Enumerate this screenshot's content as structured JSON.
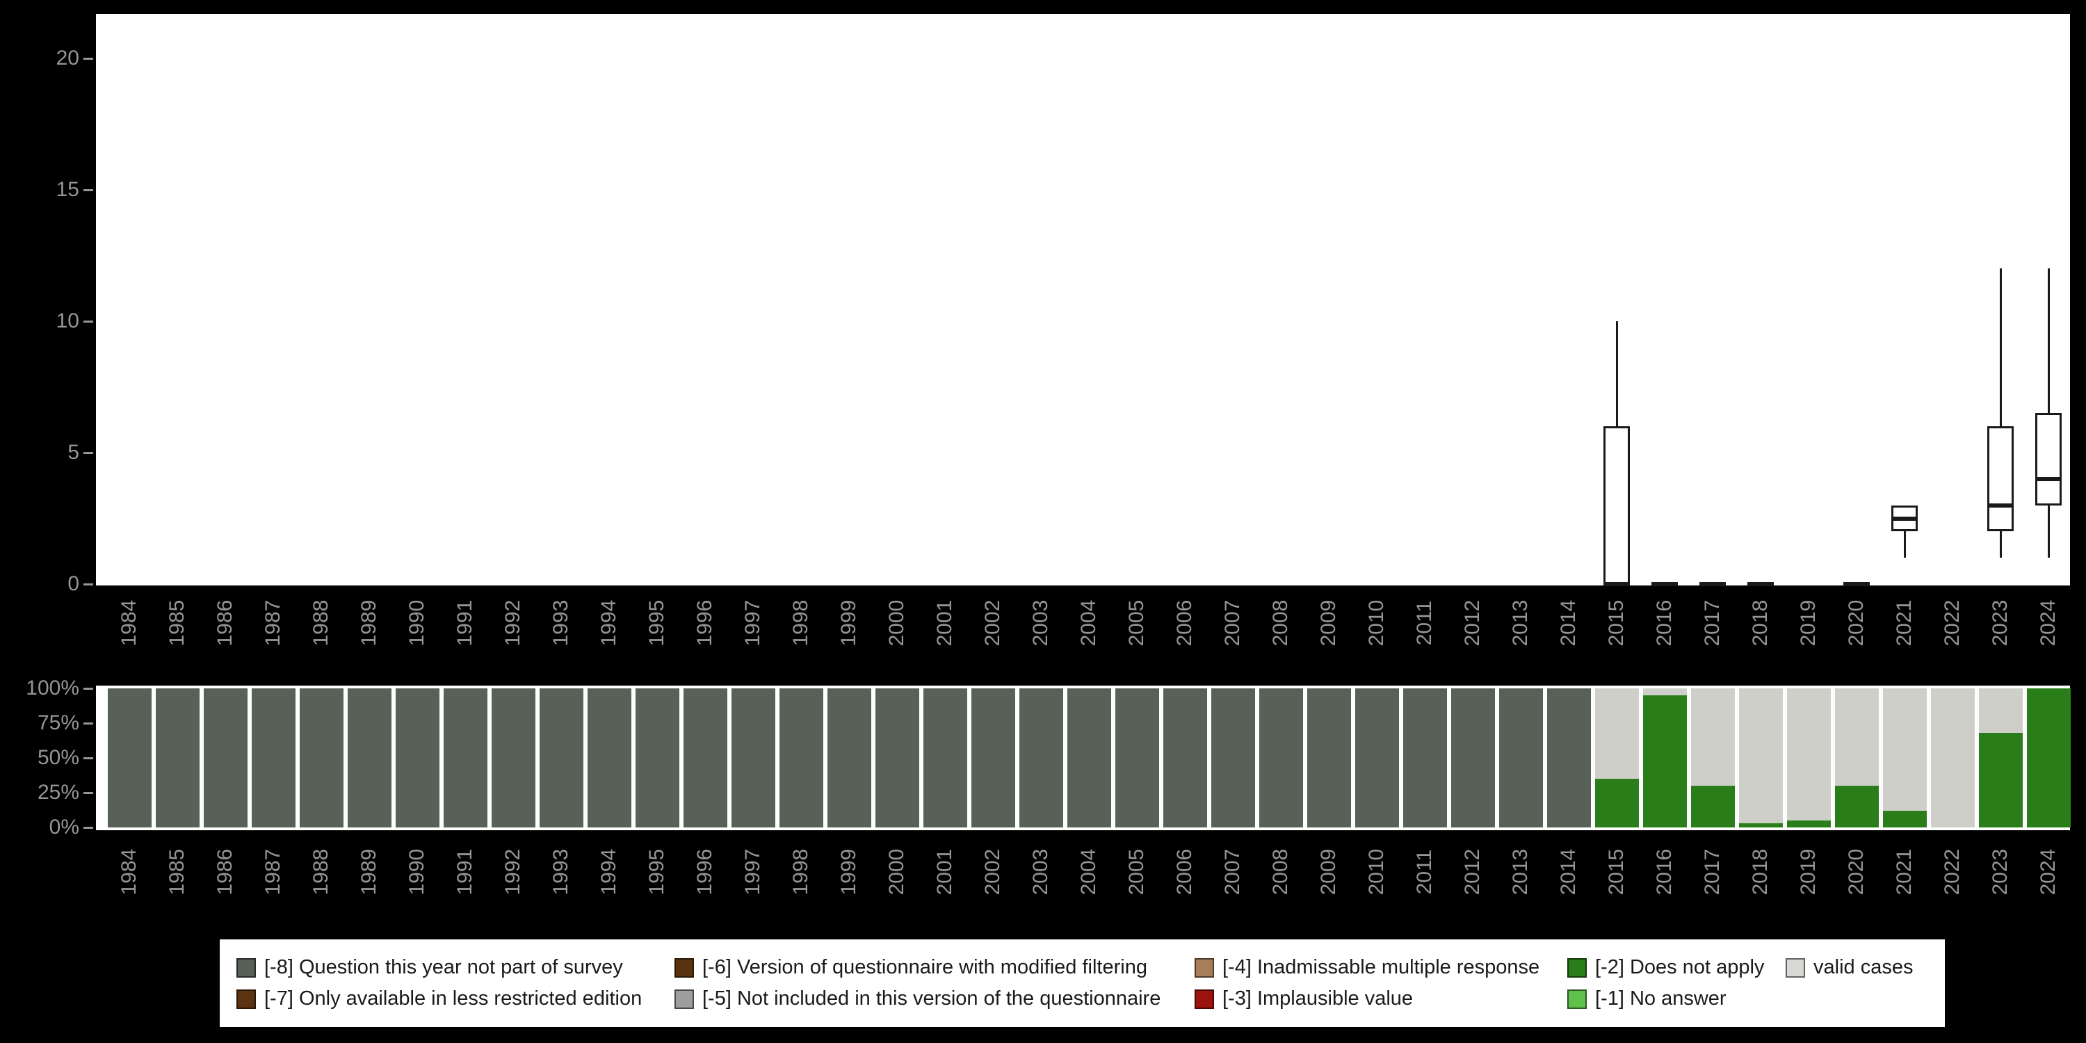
{
  "colors": {
    "background": "#000000",
    "panel": "#ffffff",
    "axis_text": "#969696",
    "box_stroke": "#1a1a1a"
  },
  "chart_data": [
    {
      "type": "boxplot",
      "title": "",
      "xlabel": "",
      "ylabel": "",
      "ylim": [
        0,
        21
      ],
      "yticks": [
        0,
        5,
        10,
        15,
        20
      ],
      "x": [
        1984,
        1985,
        1986,
        1987,
        1988,
        1989,
        1990,
        1991,
        1992,
        1993,
        1994,
        1995,
        1996,
        1997,
        1998,
        1999,
        2000,
        2001,
        2002,
        2003,
        2004,
        2005,
        2006,
        2007,
        2008,
        2009,
        2010,
        2011,
        2012,
        2013,
        2014,
        2015,
        2016,
        2017,
        2018,
        2019,
        2020,
        2021,
        2022,
        2023,
        2024
      ],
      "boxes": [
        {
          "year": 2015,
          "low": 0,
          "q1": 0,
          "median": 0,
          "q3": 6,
          "high": 10
        },
        {
          "year": 2016,
          "low": 0,
          "q1": 0,
          "median": 0,
          "q3": 0,
          "high": 0
        },
        {
          "year": 2017,
          "low": 0,
          "q1": 0,
          "median": 0,
          "q3": 0,
          "high": 0
        },
        {
          "year": 2018,
          "low": 0,
          "q1": 0,
          "median": 0,
          "q3": 0,
          "high": 0
        },
        {
          "year": 2020,
          "low": 0,
          "q1": 0,
          "median": 0,
          "q3": 0,
          "high": 0
        },
        {
          "year": 2021,
          "low": 1,
          "q1": 2,
          "median": 2.5,
          "q3": 3,
          "high": 3
        },
        {
          "year": 2023,
          "low": 1,
          "q1": 2,
          "median": 3,
          "q3": 6,
          "high": 12
        },
        {
          "year": 2024,
          "low": 1,
          "q1": 3,
          "median": 4,
          "q3": 6.5,
          "high": 12
        }
      ]
    },
    {
      "type": "bar",
      "stacked": true,
      "percent": true,
      "title": "",
      "ylim": [
        0,
        100
      ],
      "yticks": [
        "0%",
        "25%",
        "50%",
        "75%",
        "100%"
      ],
      "ytick_values": [
        0,
        25,
        50,
        75,
        100
      ],
      "categories": [
        1984,
        1985,
        1986,
        1987,
        1988,
        1989,
        1990,
        1991,
        1992,
        1993,
        1994,
        1995,
        1996,
        1997,
        1998,
        1999,
        2000,
        2001,
        2002,
        2003,
        2004,
        2005,
        2006,
        2007,
        2008,
        2009,
        2010,
        2011,
        2012,
        2013,
        2014,
        2015,
        2016,
        2017,
        2018,
        2019,
        2020,
        2021,
        2022,
        2023,
        2024
      ],
      "series": [
        {
          "name": "[-8] Question this year not part of survey",
          "color": "#576157",
          "values": [
            100,
            100,
            100,
            100,
            100,
            100,
            100,
            100,
            100,
            100,
            100,
            100,
            100,
            100,
            100,
            100,
            100,
            100,
            100,
            100,
            100,
            100,
            100,
            100,
            100,
            100,
            100,
            100,
            100,
            100,
            100,
            0,
            0,
            0,
            0,
            0,
            0,
            0,
            0,
            0,
            0
          ]
        },
        {
          "name": "[-2] Does not apply",
          "color": "#2a7e19",
          "values": [
            0,
            0,
            0,
            0,
            0,
            0,
            0,
            0,
            0,
            0,
            0,
            0,
            0,
            0,
            0,
            0,
            0,
            0,
            0,
            0,
            0,
            0,
            0,
            0,
            0,
            0,
            0,
            0,
            0,
            0,
            0,
            35,
            95,
            30,
            3,
            5,
            30,
            12,
            0,
            68,
            100
          ]
        },
        {
          "name": "valid cases",
          "color": "#cfcfca",
          "values": [
            0,
            0,
            0,
            0,
            0,
            0,
            0,
            0,
            0,
            0,
            0,
            0,
            0,
            0,
            0,
            0,
            0,
            0,
            0,
            0,
            0,
            0,
            0,
            0,
            0,
            0,
            0,
            0,
            0,
            0,
            0,
            65,
            5,
            70,
            97,
            95,
            70,
            88,
            100,
            32,
            0
          ]
        }
      ]
    }
  ],
  "legend": {
    "rows": [
      [
        {
          "code": "-8",
          "label": "[-8] Question this year not part of survey",
          "color": "#576157"
        },
        {
          "code": "-6",
          "label": "[-6] Version of questionnaire with modified filtering",
          "color": "#59330f"
        },
        {
          "code": "-4",
          "label": "[-4] Inadmissable multiple response",
          "color": "#a87e58"
        },
        {
          "code": "-2",
          "label": "[-2] Does not apply",
          "color": "#2a7e19"
        },
        {
          "code": "valid",
          "label": "valid cases",
          "color": "#d8d8d4"
        }
      ],
      [
        {
          "code": "-7",
          "label": "[-7] Only available in less restricted edition",
          "color": "#5b3413"
        },
        {
          "code": "-5",
          "label": "[-5] Not included in this version of the questionnaire",
          "color": "#9e9e9e"
        },
        {
          "code": "-3",
          "label": "[-3] Implausible value",
          "color": "#9c120c"
        },
        {
          "code": "-1",
          "label": "[-1] No answer",
          "color": "#5fc14c"
        }
      ]
    ]
  }
}
